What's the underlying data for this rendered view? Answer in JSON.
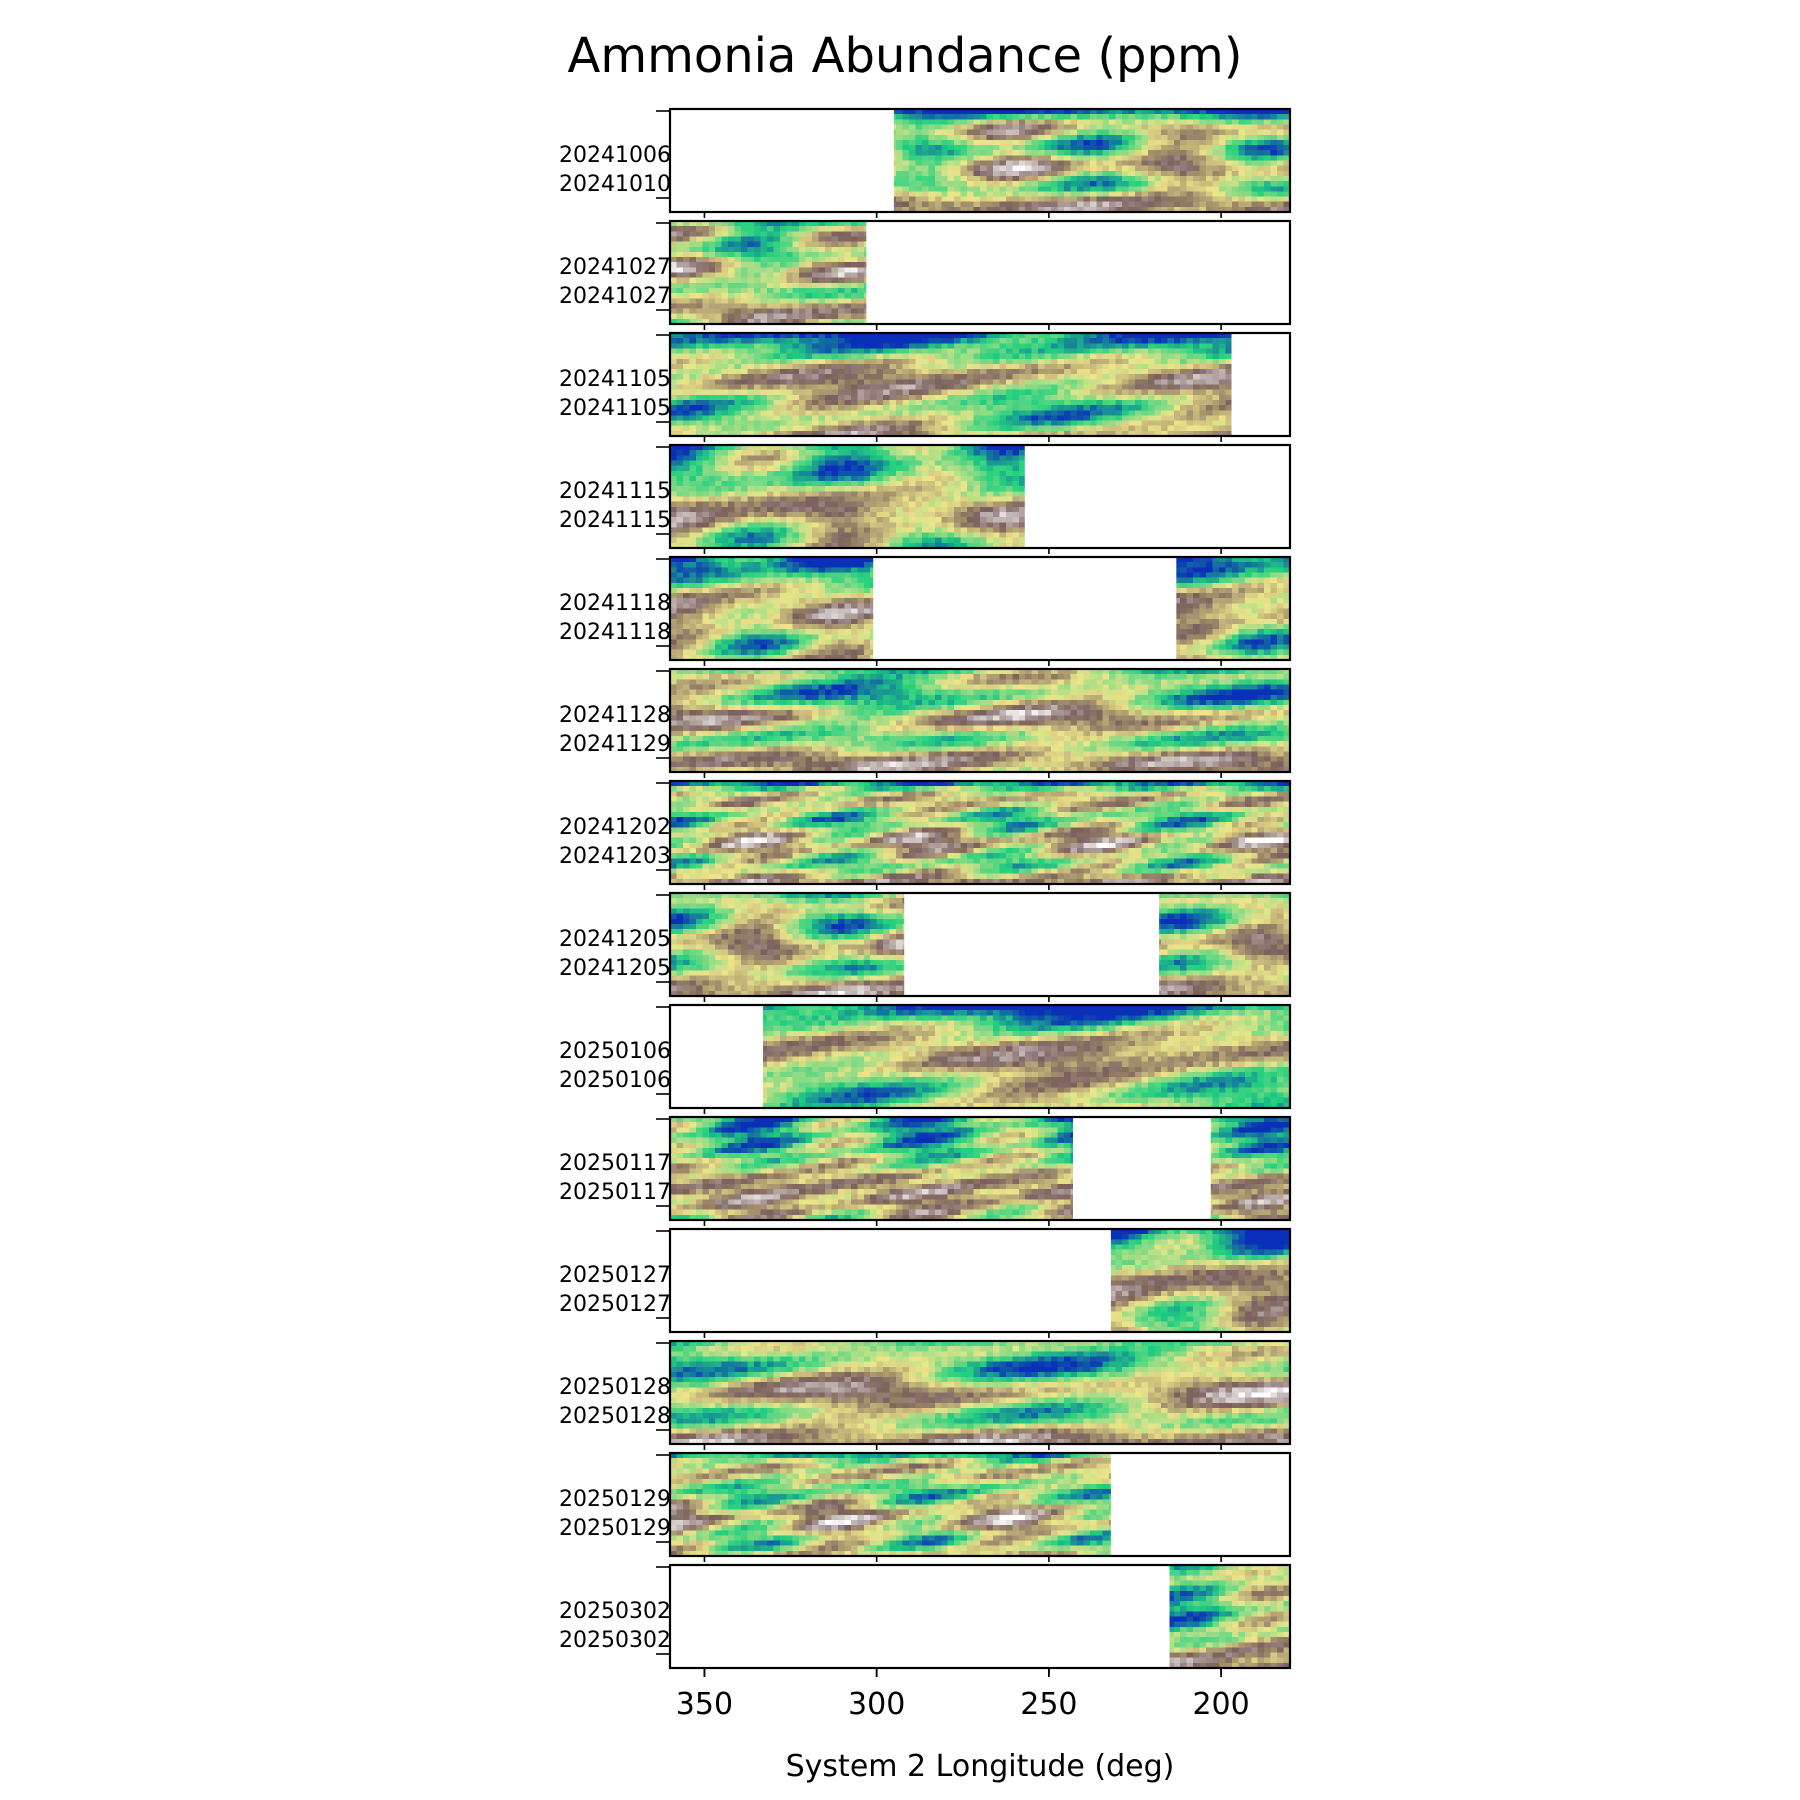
{
  "chart_data": {
    "type": "heatmap",
    "title": "Ammonia Abundance (ppm)",
    "xlabel": "System 2 Longitude (deg)",
    "xlim": [
      360,
      180
    ],
    "xticks": [
      "350",
      "300",
      "250",
      "200"
    ],
    "xtick_values": [
      350,
      300,
      250,
      200
    ],
    "colormap": [
      "#ffffff",
      "#7a5f5c",
      "#ece58a",
      "#22d07f",
      "#0a2fb8"
    ],
    "panels": [
      {
        "label_top": "20241006",
        "label_bottom": "20241010",
        "coverage": [
          [
            295,
            180
          ]
        ],
        "seed": 11
      },
      {
        "label_top": "20241027",
        "label_bottom": "20241027",
        "coverage": [
          [
            360,
            303
          ]
        ],
        "seed": 23
      },
      {
        "label_top": "20241105",
        "label_bottom": "20241105",
        "coverage": [
          [
            360,
            197
          ]
        ],
        "seed": 37
      },
      {
        "label_top": "20241115",
        "label_bottom": "20241115",
        "coverage": [
          [
            360,
            257
          ]
        ],
        "seed": 41
      },
      {
        "label_top": "20241118",
        "label_bottom": "20241118",
        "coverage": [
          [
            360,
            301
          ],
          [
            213,
            180
          ]
        ],
        "seed": 53
      },
      {
        "label_top": "20241128",
        "label_bottom": "20241129",
        "coverage": [
          [
            360,
            180
          ]
        ],
        "seed": 67
      },
      {
        "label_top": "20241202",
        "label_bottom": "20241203",
        "coverage": [
          [
            360,
            180
          ]
        ],
        "seed": 71
      },
      {
        "label_top": "20241205",
        "label_bottom": "20241205",
        "coverage": [
          [
            360,
            292
          ],
          [
            218,
            180
          ]
        ],
        "seed": 83
      },
      {
        "label_top": "20250106",
        "label_bottom": "20250106",
        "coverage": [
          [
            333,
            180
          ]
        ],
        "seed": 97
      },
      {
        "label_top": "20250117",
        "label_bottom": "20250117",
        "coverage": [
          [
            360,
            243
          ],
          [
            203,
            180
          ]
        ],
        "seed": 101
      },
      {
        "label_top": "20250127",
        "label_bottom": "20250127",
        "coverage": [
          [
            232,
            180
          ]
        ],
        "seed": 113
      },
      {
        "label_top": "20250128",
        "label_bottom": "20250128",
        "coverage": [
          [
            360,
            180
          ]
        ],
        "seed": 127
      },
      {
        "label_top": "20250129",
        "label_bottom": "20250129",
        "coverage": [
          [
            360,
            232
          ]
        ],
        "seed": 131
      },
      {
        "label_top": "20250302",
        "label_bottom": "20250302",
        "coverage": [
          [
            215,
            180
          ]
        ],
        "seed": 149
      }
    ]
  }
}
